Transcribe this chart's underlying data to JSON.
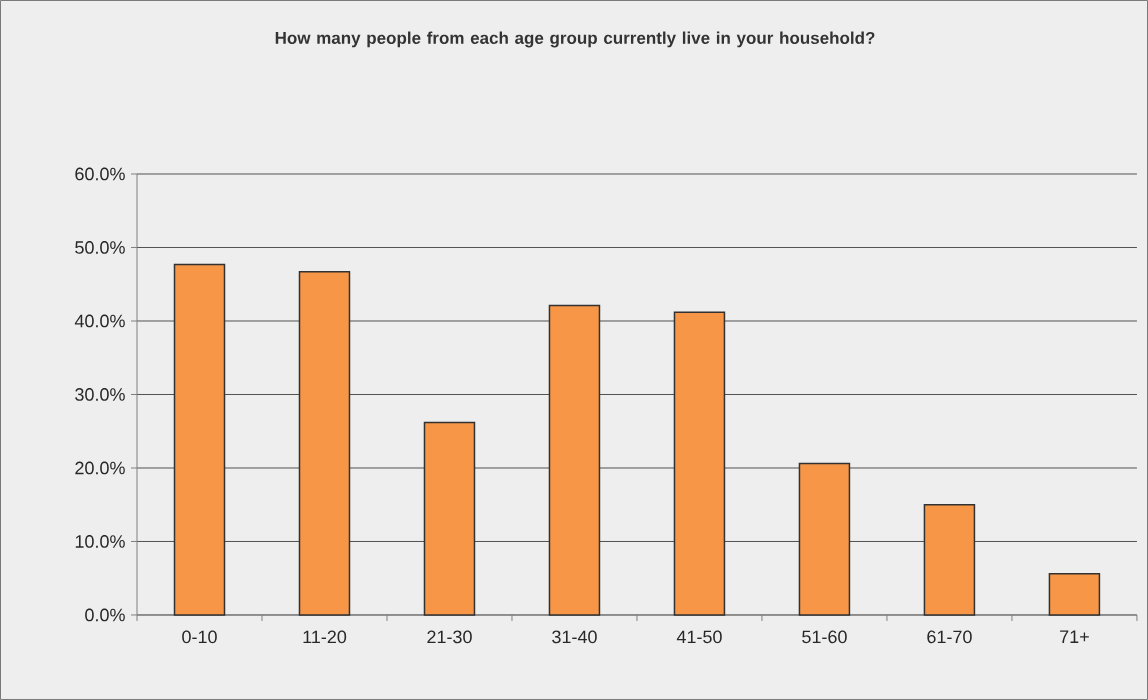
{
  "chart_data": {
    "type": "bar",
    "title": "How many people from each age group currently live in your household?",
    "categories": [
      "0-10",
      "11-20",
      "21-30",
      "31-40",
      "41-50",
      "51-60",
      "61-70",
      "71+"
    ],
    "values": [
      47.7,
      46.7,
      26.2,
      42.1,
      41.2,
      20.6,
      15.0,
      5.6
    ],
    "color": "#f79646",
    "ylim": [
      0,
      60
    ],
    "yticks": [
      {
        "value": 0,
        "label": "0.0%"
      },
      {
        "value": 10,
        "label": "10.0%"
      },
      {
        "value": 20,
        "label": "20.0%"
      },
      {
        "value": 30,
        "label": "30.0%"
      },
      {
        "value": 40,
        "label": "40.0%"
      },
      {
        "value": 50,
        "label": "50.0%"
      },
      {
        "value": 60,
        "label": "60.0%"
      }
    ],
    "grid": "y"
  }
}
